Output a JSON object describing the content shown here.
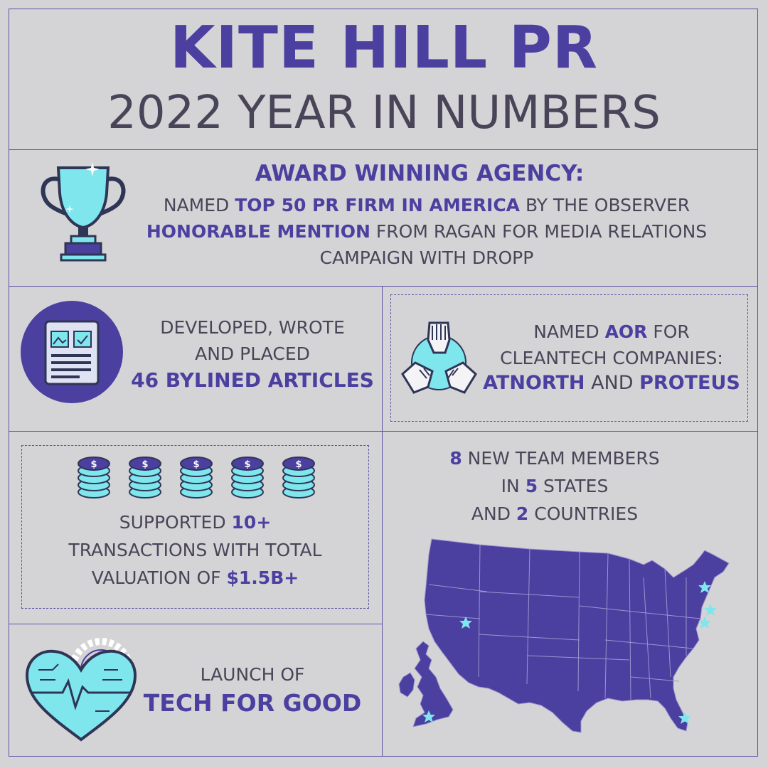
{
  "header": {
    "title": "KITE HILL PR",
    "subtitle": "2022 YEAR IN NUMBERS"
  },
  "award": {
    "heading": "AWARD WINNING AGENCY:",
    "line1_pre": "NAMED ",
    "line1_hl": "TOP 50 PR FIRM IN AMERICA",
    "line1_post": " BY THE OBSERVER",
    "line2_hl": "HONORABLE MENTION",
    "line2_post": " FROM RAGAN FOR MEDIA RELATIONS",
    "line3": "CAMPAIGN WITH DROPP"
  },
  "articles": {
    "line1": "DEVELOPED, WROTE",
    "line2": "AND PLACED",
    "line3": "46 BYLINED ARTICLES"
  },
  "aor": {
    "line1_pre": "NAMED ",
    "line1_hl": "AOR",
    "line1_post": " FOR",
    "line2": "CLEANTECH COMPANIES:",
    "line3_a": "ATNORTH",
    "line3_and": " AND ",
    "line3_b": "PROTEUS"
  },
  "transactions": {
    "line1_pre": "SUPPORTED ",
    "line1_hl": "10+",
    "line2": "TRANSACTIONS WITH TOTAL",
    "line3_pre": "VALUATION OF ",
    "line3_hl": "$1.5B+"
  },
  "team": {
    "line1_hl": "8",
    "line1_post": " NEW TEAM MEMBERS",
    "line2_pre": "IN  ",
    "line2_hl": "5",
    "line2_post": " STATES",
    "line3_pre": "AND ",
    "line3_hl": "2",
    "line3_post": " COUNTRIES"
  },
  "tech": {
    "line1": "LAUNCH OF",
    "line2": "TECH FOR GOOD"
  },
  "colors": {
    "background": "#d4d4d6",
    "accent": "#4b3fa0",
    "text": "#4a4458",
    "icon_cyan": "#7fe6ee"
  },
  "icons": [
    "trophy-icon",
    "news-article-icon",
    "hands-collaboration-icon",
    "coin-stack-icon",
    "usa-uk-map-icon",
    "star-marker-icon",
    "tech-heart-icon"
  ]
}
